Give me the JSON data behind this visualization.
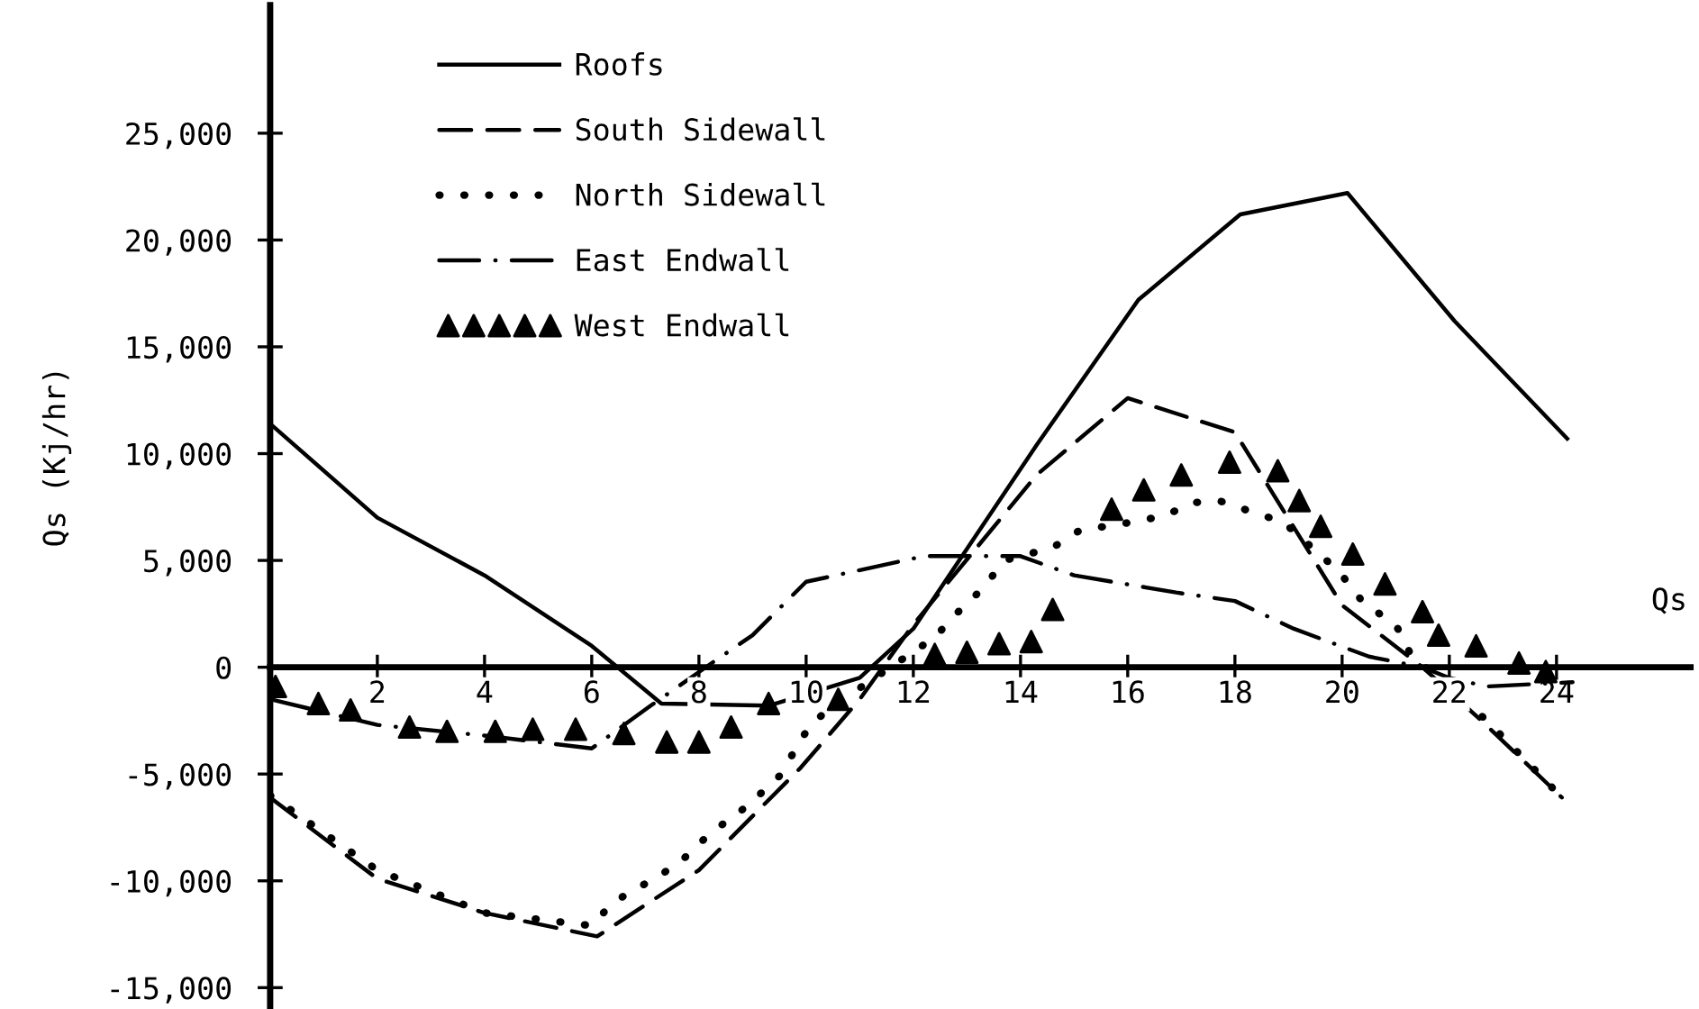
{
  "chart_data": {
    "type": "line",
    "xlabel": "Qs",
    "ylabel": "Qs (Kj/hr)",
    "xlim": [
      0,
      26.5
    ],
    "ylim": [
      -16000,
      31000
    ],
    "xticks": [
      2,
      4,
      6,
      8,
      10,
      12,
      14,
      16,
      18,
      20,
      22,
      24
    ],
    "yticks": [
      {
        "value": 25000,
        "label": "25,000"
      },
      {
        "value": 20000,
        "label": "20,000"
      },
      {
        "value": 15000,
        "label": "15,000"
      },
      {
        "value": 10000,
        "label": "10,000"
      },
      {
        "value": 5000,
        "label": "5,000"
      },
      0,
      {
        "value": -5000,
        "label": "-5,000"
      },
      {
        "value": -10000,
        "label": "-10,000"
      },
      {
        "value": -15000,
        "label": "-15,000"
      }
    ],
    "grid": false,
    "legend": "top left",
    "series": [
      {
        "name": "Roofs",
        "color": "#000000",
        "line_style": "solid",
        "marker": "none",
        "x": [
          0,
          2,
          4,
          6,
          7.3,
          9.3,
          11,
          12,
          14.3,
          16.2,
          18.1,
          20.1,
          22.1,
          24.2
        ],
        "values": [
          11400,
          7000,
          4300,
          1000,
          -1700,
          -1800,
          -500,
          1800,
          10400,
          17200,
          21200,
          22200,
          16200,
          10700
        ]
      },
      {
        "name": "South Sidewall",
        "color": "#000000",
        "line_style": "dashed",
        "marker": "none",
        "x": [
          0,
          2,
          4,
          6.1,
          8,
          9.9,
          11,
          12,
          14.3,
          16,
          18,
          20,
          21.5,
          22.6,
          24.1
        ],
        "values": [
          -6100,
          -9900,
          -11500,
          -12600,
          -9500,
          -4700,
          -1500,
          2000,
          9000,
          12600,
          11000,
          2900,
          0,
          -2500,
          -6100
        ]
      },
      {
        "name": "North Sidewall",
        "color": "#000000",
        "line_style": "dotted",
        "marker": "none",
        "x": [
          0,
          2,
          4,
          6,
          6.4,
          7.3,
          7.7,
          8.2,
          8.9,
          9.5,
          10.1,
          11.1,
          12.4,
          12.8,
          13.3,
          13.7,
          14.6,
          15.1,
          16.1,
          16.7,
          17.2,
          17.7,
          18.4,
          18.9,
          19.8,
          20.1,
          20.4,
          21,
          21.3,
          21.7,
          22.7,
          24.1
        ],
        "values": [
          -6000,
          -9500,
          -11500,
          -12100,
          -11000,
          -9700,
          -9000,
          -7800,
          -6500,
          -5100,
          -2600,
          -800,
          1400,
          2500,
          3700,
          5000,
          5600,
          6400,
          6800,
          7100,
          7700,
          7800,
          7200,
          6800,
          4800,
          4000,
          3000,
          2000,
          500,
          -300,
          -2500,
          -6100
        ]
      },
      {
        "name": "East Endwall",
        "color": "#000000",
        "line_style": "dashdot",
        "marker": "none",
        "x": [
          0,
          2,
          4,
          6,
          7.1,
          8.3,
          9,
          10,
          11.1,
          12.2,
          14,
          15,
          16.9,
          18,
          19.1,
          20.5,
          21.5,
          22,
          22.7,
          24.3
        ],
        "values": [
          -1500,
          -2700,
          -3200,
          -3800,
          -1800,
          300,
          1500,
          4000,
          4600,
          5200,
          5200,
          4300,
          3500,
          3100,
          1800,
          500,
          0,
          -500,
          -900,
          -700
        ]
      },
      {
        "name": "West Endwall",
        "type": "scatter",
        "color": "#000000",
        "marker": "triangle",
        "x": [
          0.1,
          0.9,
          1.5,
          2.6,
          3.3,
          4.2,
          4.9,
          5.7,
          6.6,
          7.4,
          8,
          8.6,
          9.3,
          10.6,
          12.4,
          13,
          13.6,
          14.2,
          14.6,
          15.7,
          16.3,
          17,
          17.9,
          18.8,
          19.2,
          19.6,
          20.2,
          20.8,
          21.5,
          21.8,
          22.5,
          23.3,
          23.8
        ],
        "values": [
          -900,
          -1700,
          -2000,
          -2800,
          -3000,
          -3000,
          -2900,
          -2900,
          -3100,
          -3500,
          -3500,
          -2800,
          -1700,
          -1500,
          600,
          700,
          1100,
          1200,
          2700,
          7400,
          8300,
          9000,
          9600,
          9200,
          7800,
          6600,
          5300,
          3900,
          2600,
          1500,
          1000,
          200,
          -200
        ]
      }
    ]
  }
}
